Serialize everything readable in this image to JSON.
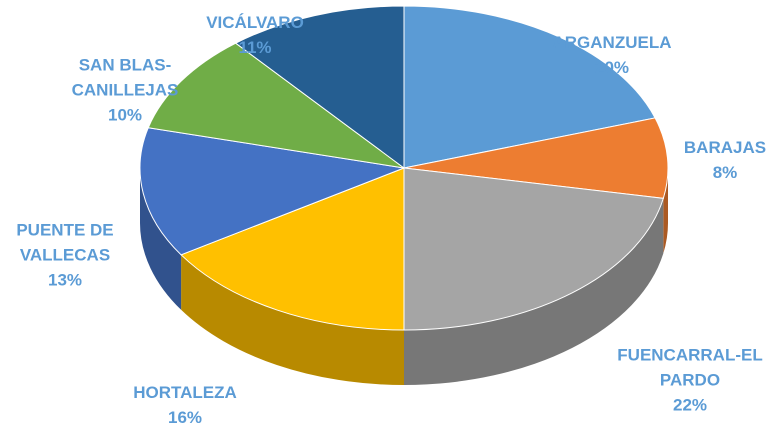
{
  "chart_data": {
    "type": "pie3d",
    "categories": [
      "ARGANZUELA",
      "BARAJAS",
      "FUENCARRAL-EL PARDO",
      "HORTALEZA",
      "PUENTE DE VALLECAS",
      "SAN BLAS-CANILLEJAS",
      "VICÁLVARO"
    ],
    "values": [
      20,
      8,
      22,
      16,
      13,
      10,
      11
    ],
    "value_labels": [
      "20%",
      "8%",
      "22%",
      "16%",
      "13%",
      "10%",
      "11%"
    ],
    "colors": [
      "#5b9bd5",
      "#ed7d31",
      "#a5a5a5",
      "#ffc000",
      "#4472c4",
      "#70ad47",
      "#255e91"
    ]
  }
}
